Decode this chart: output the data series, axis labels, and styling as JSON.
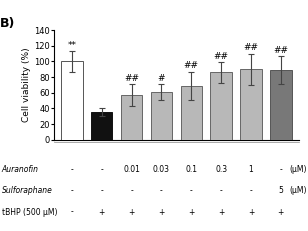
{
  "title": "B)",
  "ylabel": "Cell viability (%)",
  "ylim": [
    0,
    140
  ],
  "yticks": [
    0,
    20,
    40,
    60,
    80,
    100,
    120,
    140
  ],
  "bar_values": [
    100,
    35,
    57,
    61,
    69,
    86,
    90,
    89
  ],
  "bar_errors": [
    13,
    5,
    14,
    10,
    18,
    13,
    20,
    18
  ],
  "bar_colors": [
    "#ffffff",
    "#111111",
    "#b8b8b8",
    "#b8b8b8",
    "#b8b8b8",
    "#b8b8b8",
    "#b8b8b8",
    "#787878"
  ],
  "bar_edge_colors": [
    "#555555",
    "#111111",
    "#666666",
    "#666666",
    "#666666",
    "#666666",
    "#666666",
    "#555555"
  ],
  "significance": [
    "**",
    "",
    "##",
    "#",
    "##",
    "##",
    "##",
    "##"
  ],
  "row1_label": "Auranofin",
  "row2_label": "Sulforaphane",
  "row3_label": "tBHP (500 μM)",
  "row1_values": [
    "-",
    "-",
    "0.01",
    "0.03",
    "0.1",
    "0.3",
    "1",
    "-"
  ],
  "row2_values": [
    "-",
    "-",
    "-",
    "-",
    "-",
    "-",
    "-",
    "5"
  ],
  "row3_values": [
    "-",
    "+",
    "+",
    "+",
    "+",
    "+",
    "+",
    "+"
  ],
  "unit_label": "(μM)",
  "n_bars": 8,
  "bg_color": "#ffffff",
  "title_fontsize": 9,
  "ylabel_fontsize": 6.5,
  "ytick_fontsize": 6,
  "sig_fontsize": 6.5,
  "table_fontsize": 5.5
}
